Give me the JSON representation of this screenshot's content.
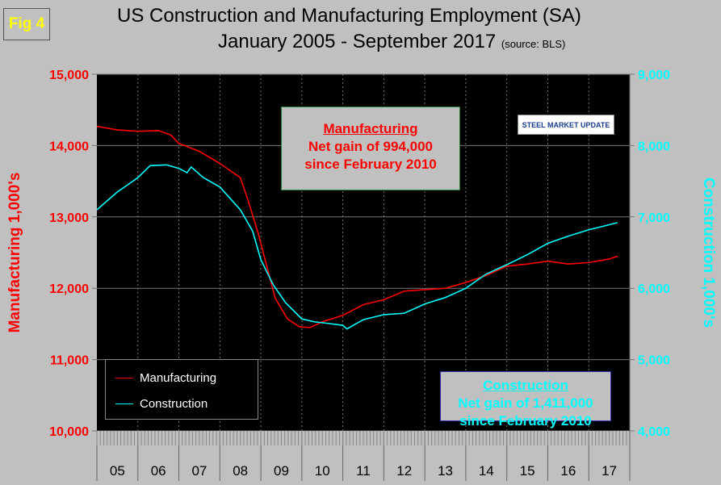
{
  "fig_label": "Fig 4",
  "title_line1": "US Construction and Manufacturing Employment (SA)",
  "title_line2": "January 2005 - September 2017",
  "title_source": "(source: BLS)",
  "annotations": {
    "manufacturing": {
      "heading": "Manufacturing",
      "line1": "Net gain of 994,000",
      "line2": "since February 2010"
    },
    "construction": {
      "heading": "Construction",
      "line1": "Net gain of 1,411,000",
      "line2": "since February 2010"
    }
  },
  "logo": "STEEL MARKET UPDATE",
  "chart_data": {
    "type": "line",
    "ylabel_left": "Manufacturing 1,000's",
    "ylabel_right": "Construction 1,000's",
    "ylim_left": [
      10000,
      15000
    ],
    "ylim_right": [
      4000,
      9000
    ],
    "yticks_left": [
      "10,000",
      "11,000",
      "12,000",
      "13,000",
      "14,000",
      "15,000"
    ],
    "yticks_right": [
      "4,000",
      "5,000",
      "6,000",
      "7,000",
      "8,000",
      "9,000"
    ],
    "xticks": [
      "05",
      "06",
      "07",
      "08",
      "09",
      "10",
      "11",
      "12",
      "13",
      "14",
      "15",
      "16",
      "17"
    ],
    "xlim": [
      2005,
      2018
    ],
    "grid": true,
    "legend_position": "bottom-left",
    "colors": {
      "manufacturing": "#ff0000",
      "construction": "#00ffff",
      "background": "#000000"
    },
    "series": [
      {
        "name": "Manufacturing",
        "axis": "left",
        "x": [
          2005.0,
          2005.5,
          2006.0,
          2006.5,
          2006.8,
          2007.0,
          2007.5,
          2008.0,
          2008.5,
          2008.7,
          2008.94,
          2009.35,
          2009.65,
          2009.94,
          2010.2,
          2010.5,
          2011.0,
          2011.5,
          2012.0,
          2012.5,
          2013.0,
          2013.5,
          2014.0,
          2014.5,
          2015.0,
          2015.5,
          2016.0,
          2016.5,
          2017.0,
          2017.5,
          2017.7
        ],
        "y": [
          14270,
          14220,
          14200,
          14210,
          14150,
          14030,
          13920,
          13750,
          13550,
          13210,
          12760,
          11860,
          11570,
          11460,
          11450,
          11530,
          11620,
          11770,
          11840,
          11960,
          11980,
          12000,
          12080,
          12180,
          12310,
          12340,
          12380,
          12340,
          12360,
          12410,
          12450
        ]
      },
      {
        "name": "Construction",
        "axis": "right",
        "x": [
          2005.0,
          2005.5,
          2006.0,
          2006.3,
          2006.7,
          2007.0,
          2007.2,
          2007.3,
          2007.6,
          2008.0,
          2008.5,
          2008.8,
          2009.0,
          2009.3,
          2009.6,
          2010.0,
          2010.3,
          2010.6,
          2011.0,
          2011.1,
          2011.5,
          2012.0,
          2012.5,
          2013.0,
          2013.5,
          2014.0,
          2014.5,
          2015.0,
          2015.5,
          2016.0,
          2016.5,
          2017.0,
          2017.5,
          2017.7
        ],
        "y": [
          7100,
          7350,
          7550,
          7720,
          7730,
          7680,
          7620,
          7700,
          7550,
          7420,
          7100,
          6800,
          6400,
          6050,
          5800,
          5570,
          5530,
          5510,
          5480,
          5430,
          5560,
          5630,
          5650,
          5780,
          5870,
          6000,
          6200,
          6330,
          6470,
          6630,
          6730,
          6820,
          6890,
          6920
        ]
      }
    ]
  }
}
